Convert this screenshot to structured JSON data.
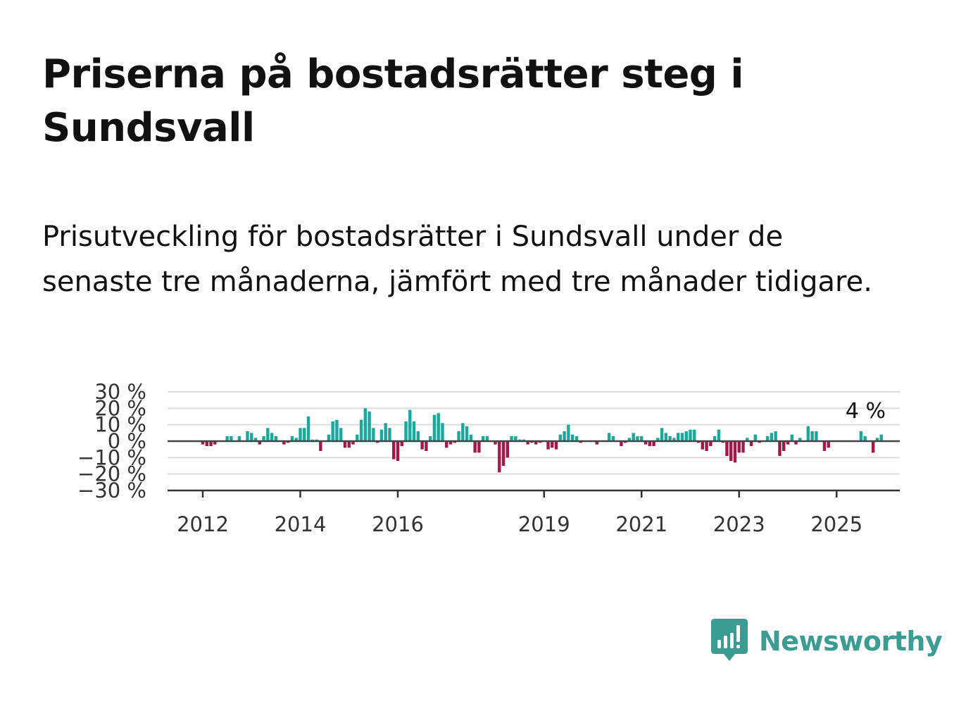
{
  "header": {
    "title": "Priserna på bostadsrätter steg i Sundsvall",
    "subtitle": "Prisutveckling för bostadsrätter i Sundsvall under de senaste tre månaderna, jämfört med tre månader tidigare."
  },
  "chart_data": {
    "type": "bar",
    "title": "Priserna på bostadsrätter steg i Sundsvall",
    "subtitle": "Prisutveckling för bostadsrätter i Sundsvall under de senaste tre månaderna, jämfört med tre månader tidigare.",
    "xlabel": "",
    "ylabel": "",
    "ylim": [
      -30,
      30
    ],
    "y_ticks": [
      30,
      20,
      10,
      0,
      -10,
      -20,
      -30
    ],
    "y_tick_labels": [
      "30 %",
      "20 %",
      "10 %",
      "0 %",
      "−10 %",
      "−20 %",
      "−30 %"
    ],
    "x_tick_labels": [
      "2012",
      "2014",
      "2016",
      "2019",
      "2021",
      "2023",
      "2025"
    ],
    "x_tick_years": [
      2012,
      2014,
      2016,
      2019,
      2021,
      2023,
      2025
    ],
    "x_start": "2012-01",
    "frequency": "monthly",
    "grid": true,
    "legend": "none",
    "colors": {
      "positive": "#1aa89c",
      "negative": "#a3184a",
      "grid": "#dddddd",
      "axis": "#333333",
      "zero_line": "#444444"
    },
    "last_value_label": "4 %",
    "values": [
      -2,
      -3,
      -3,
      -2,
      0,
      0,
      3,
      3,
      0,
      3,
      0,
      6,
      5,
      2,
      -2,
      3,
      8,
      5,
      3,
      0,
      -2,
      -1,
      3,
      2,
      8,
      8,
      15,
      1,
      1,
      -6,
      0,
      4,
      12,
      13,
      8,
      -4,
      -4,
      -2,
      4,
      13,
      20,
      18,
      8,
      -1,
      7,
      11,
      8,
      -11,
      -12,
      -3,
      12,
      19,
      12,
      6,
      -5,
      -6,
      3,
      16,
      17,
      11,
      -4,
      -2,
      -1,
      6,
      11,
      9,
      4,
      -7,
      -7,
      3,
      3,
      0,
      -2,
      -19,
      -15,
      -10,
      3,
      3,
      1,
      1,
      -2,
      -1,
      -2,
      -1,
      0,
      -5,
      -4,
      -5,
      4,
      6,
      10,
      4,
      3,
      -1,
      0,
      0,
      0,
      -2,
      0,
      0,
      5,
      3,
      0,
      -3,
      -1,
      2,
      5,
      3,
      3,
      -2,
      -3,
      -3,
      2,
      8,
      5,
      3,
      2,
      5,
      5,
      6,
      7,
      7,
      -1,
      -5,
      -6,
      -3,
      3,
      7,
      -1,
      -9,
      -12,
      -13,
      -7,
      -7,
      2,
      -3,
      4,
      -1,
      0,
      3,
      5,
      6,
      -9,
      -6,
      -2,
      4,
      -2,
      2,
      0,
      9,
      6,
      6,
      0,
      -6,
      -4,
      0,
      0,
      0,
      0,
      0,
      0,
      0,
      6,
      3,
      0,
      -7,
      2,
      4
    ]
  },
  "brand": {
    "name": "Newsworthy",
    "icon": "newsworthy-logo-icon",
    "color": "#3b9c93"
  }
}
